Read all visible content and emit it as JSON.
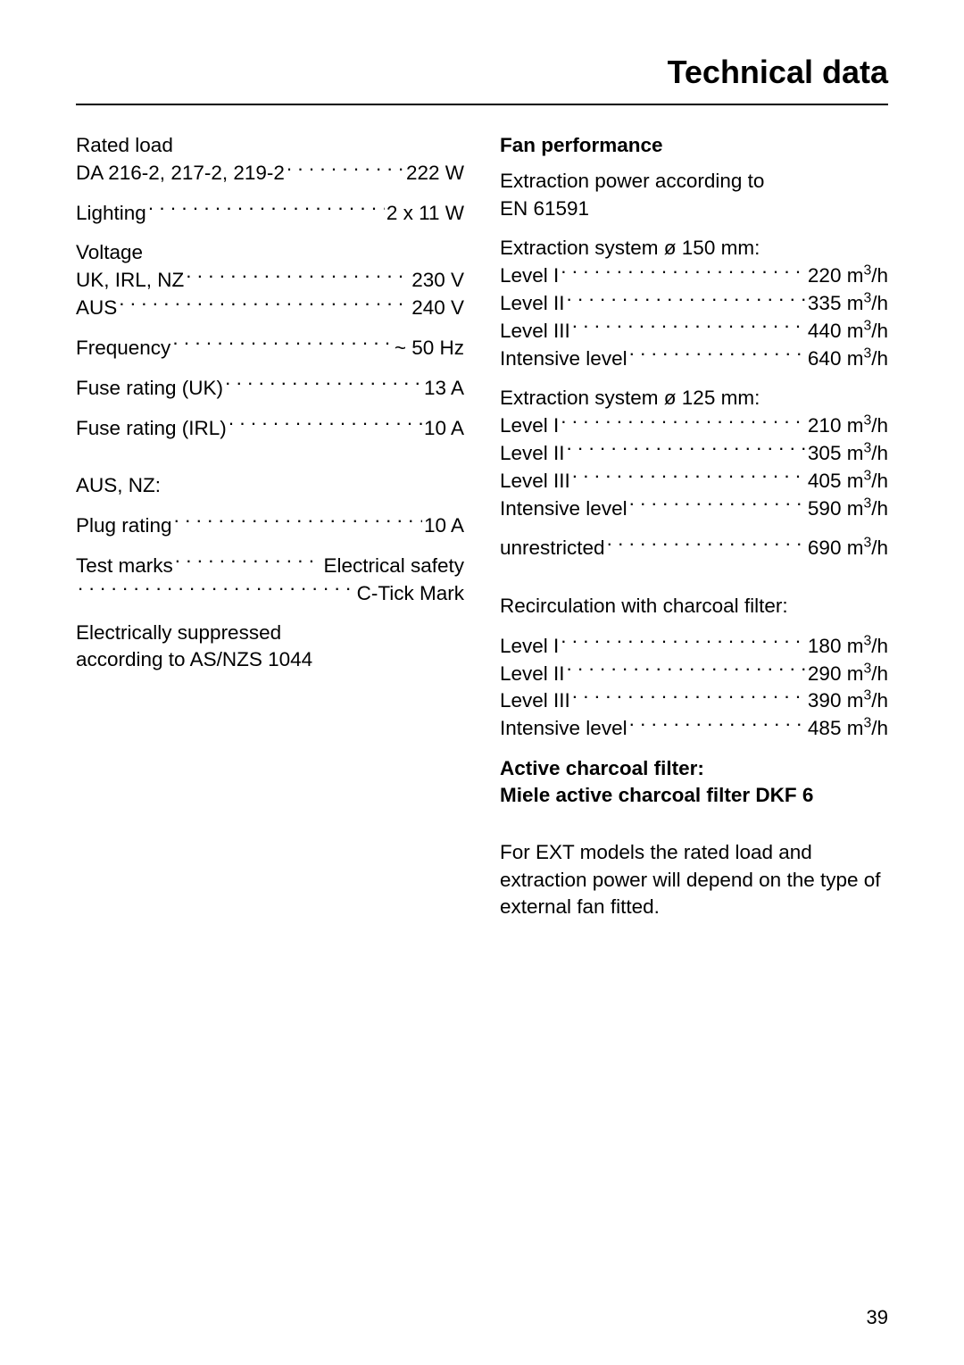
{
  "title": "Technical data",
  "page_number": "39",
  "left": {
    "rated_load_label": "Rated load",
    "rated_load_row": {
      "label": "DA 216-2, 217-2, 219-2",
      "value": "222 W"
    },
    "lighting_row": {
      "label": "Lighting",
      "value": "2 x 11 W"
    },
    "voltage_label": "Voltage",
    "voltage_uk": {
      "label": "UK, IRL, NZ",
      "value": "230 V"
    },
    "voltage_aus": {
      "label": "AUS",
      "value": "240 V"
    },
    "frequency_row": {
      "label": "Frequency",
      "value": "~ 50 Hz"
    },
    "fuse_uk_row": {
      "label": "Fuse rating (UK)",
      "value": "13 A"
    },
    "fuse_irl_row": {
      "label": "Fuse rating (IRL)",
      "value": "10 A"
    },
    "aus_nz_label": "AUS, NZ:",
    "plug_rating_row": {
      "label": "Plug rating",
      "value": "10 A"
    },
    "test_marks_row": {
      "label": "Test marks",
      "value": "Electrical safety"
    },
    "ctick_row": {
      "label": "",
      "value": "C-Tick Mark"
    },
    "suppressed_line1": "Electrically suppressed",
    "suppressed_line2": "according to AS/NZS 1044"
  },
  "right": {
    "fan_perf_heading": "Fan performance",
    "extraction_according_line1": "Extraction power according to",
    "extraction_according_line2": "EN 61591",
    "sys150_label": "Extraction system ø 150 mm:",
    "sys150_l1": {
      "label": "Level I",
      "num": "220 m",
      "unit": "/h"
    },
    "sys150_l2": {
      "label": "Level II",
      "num": "335 m",
      "unit": "/h"
    },
    "sys150_l3": {
      "label": "Level III",
      "num": "440 m",
      "unit": "/h"
    },
    "sys150_int": {
      "label": "Intensive level",
      "num": "640 m",
      "unit": "/h"
    },
    "sys125_label": "Extraction system ø 125 mm:",
    "sys125_l1": {
      "label": "Level I",
      "num": "210 m",
      "unit": "/h"
    },
    "sys125_l2": {
      "label": "Level II",
      "num": "305 m",
      "unit": "/h"
    },
    "sys125_l3": {
      "label": "Level III",
      "num": "405 m",
      "unit": "/h"
    },
    "sys125_int": {
      "label": "Intensive level",
      "num": "590 m",
      "unit": "/h"
    },
    "unrestricted": {
      "label": "unrestricted",
      "num": "690 m",
      "unit": "/h"
    },
    "recirc_label": "Recirculation with charcoal filter:",
    "recirc_l1": {
      "label": "Level I",
      "num": "180 m",
      "unit": "/h"
    },
    "recirc_l2": {
      "label": "Level II",
      "num": "290 m",
      "unit": "/h"
    },
    "recirc_l3": {
      "label": "Level III",
      "num": "390 m",
      "unit": "/h"
    },
    "recirc_int": {
      "label": "Intensive level",
      "num": "485 m",
      "unit": "/h"
    },
    "active_filter_line1": "Active charcoal filter:",
    "active_filter_line2": "Miele active charcoal filter DKF 6",
    "ext_note": "For EXT models the rated load and extraction power will depend on the type of external fan fitted."
  },
  "superscript_three": "3"
}
